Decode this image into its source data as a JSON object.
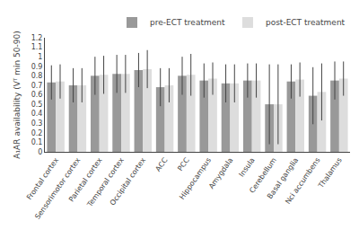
{
  "chart_data": {
    "type": "bar",
    "categories": [
      "Frontal cortex",
      "Sensorimotor cortex",
      "Parietal cortex",
      "Temporal cortex",
      "Occipital cortex",
      "ACC",
      "PCC",
      "Hippocampus",
      "Amygdala",
      "Insula",
      "Cerebellum",
      "Basal ganglia",
      "Nci accumbens",
      "Thalamus"
    ],
    "series": [
      {
        "name": "pre-ECT treatment",
        "color": "#999999",
        "values": [
          0.73,
          0.7,
          0.8,
          0.82,
          0.86,
          0.68,
          0.8,
          0.75,
          0.72,
          0.75,
          0.5,
          0.74,
          0.59,
          0.75
        ],
        "errors": [
          0.18,
          0.18,
          0.2,
          0.2,
          0.18,
          0.2,
          0.2,
          0.18,
          0.2,
          0.18,
          0.42,
          0.18,
          0.3,
          0.2
        ]
      },
      {
        "name": "post-ECT treatment",
        "color": "#dddddd",
        "values": [
          0.74,
          0.7,
          0.81,
          0.82,
          0.87,
          0.7,
          0.81,
          0.77,
          0.72,
          0.75,
          0.5,
          0.76,
          0.63,
          0.77
        ],
        "errors": [
          0.18,
          0.18,
          0.2,
          0.2,
          0.2,
          0.18,
          0.22,
          0.17,
          0.2,
          0.18,
          0.42,
          0.18,
          0.3,
          0.18
        ]
      }
    ],
    "y_label": "A₁AR availability (Vᵀ min 50-90)",
    "ylim": [
      0,
      1.2
    ],
    "yticks": [
      0,
      0.1,
      0.2,
      0.3,
      0.4,
      0.5,
      0.6,
      0.7,
      0.8,
      0.9,
      1,
      1.1,
      1.2
    ],
    "grid": false,
    "legend": "upper right"
  }
}
